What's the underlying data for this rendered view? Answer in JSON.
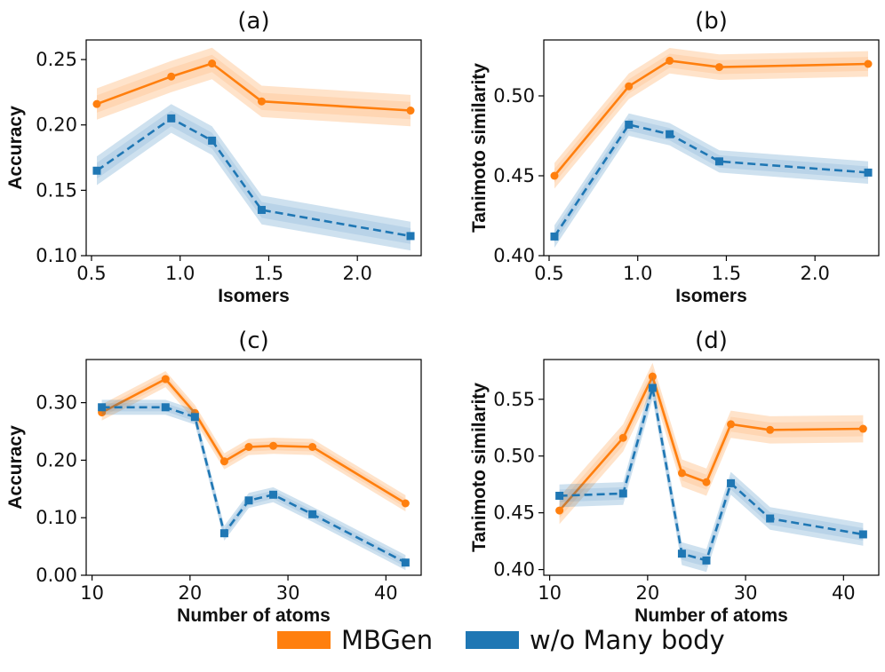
{
  "colors": {
    "mbgen": "#ff7f0e",
    "wo_many_body": "#1f77b4",
    "axis": "#000000"
  },
  "legend": {
    "items": [
      {
        "label": "MBGen",
        "color": "#ff7f0e"
      },
      {
        "label": "w/o Many body",
        "color": "#1f77b4"
      }
    ]
  },
  "chart_data": [
    {
      "type": "line",
      "title": "(a)",
      "xlabel": "Isomers",
      "ylabel": "Accuracy",
      "xlim": [
        0.47,
        2.36
      ],
      "ylim": [
        0.1,
        0.265
      ],
      "xticks": [
        0.5,
        1.0,
        1.5,
        2.0
      ],
      "xtick_labels": [
        "0.5",
        "1.0",
        "1.5",
        "2.0"
      ],
      "yticks": [
        0.1,
        0.15,
        0.2,
        0.25
      ],
      "ytick_labels": [
        "0.10",
        "0.15",
        "0.20",
        "0.25"
      ],
      "x": [
        0.53,
        0.95,
        1.18,
        1.46,
        2.3
      ],
      "series": [
        {
          "name": "MBGen",
          "values": [
            0.216,
            0.237,
            0.247,
            0.218,
            0.211
          ],
          "band": 0.012
        },
        {
          "name": "w/o Many body",
          "values": [
            0.165,
            0.205,
            0.188,
            0.135,
            0.115
          ],
          "band": 0.011
        }
      ]
    },
    {
      "type": "line",
      "title": "(b)",
      "xlabel": "Isomers",
      "ylabel": "Tanimoto similarity",
      "xlim": [
        0.47,
        2.36
      ],
      "ylim": [
        0.4,
        0.535
      ],
      "xticks": [
        0.5,
        1.0,
        1.5,
        2.0
      ],
      "xtick_labels": [
        "0.5",
        "1.0",
        "1.5",
        "2.0"
      ],
      "yticks": [
        0.4,
        0.45,
        0.5
      ],
      "ytick_labels": [
        "0.40",
        "0.45",
        "0.50"
      ],
      "x": [
        0.53,
        0.95,
        1.18,
        1.46,
        2.3
      ],
      "series": [
        {
          "name": "MBGen",
          "values": [
            0.45,
            0.506,
            0.522,
            0.518,
            0.52
          ],
          "band": 0.008
        },
        {
          "name": "w/o Many body",
          "values": [
            0.412,
            0.482,
            0.476,
            0.459,
            0.452
          ],
          "band": 0.007
        }
      ]
    },
    {
      "type": "line",
      "title": "(c)",
      "xlabel": "Number of atoms",
      "ylabel": "Accuracy",
      "xlim": [
        9.4,
        43.6
      ],
      "ylim": [
        0.0,
        0.375
      ],
      "xticks": [
        10,
        20,
        30,
        40
      ],
      "xtick_labels": [
        "10",
        "20",
        "30",
        "40"
      ],
      "yticks": [
        0.0,
        0.1,
        0.2,
        0.3
      ],
      "ytick_labels": [
        "0.00",
        "0.10",
        "0.20",
        "0.30"
      ],
      "x": [
        11,
        17.5,
        20.5,
        23.5,
        26,
        28.5,
        32.5,
        42
      ],
      "series": [
        {
          "name": "MBGen",
          "values": [
            0.283,
            0.341,
            0.282,
            0.198,
            0.223,
            0.225,
            0.223,
            0.125
          ],
          "band": 0.014
        },
        {
          "name": "w/o Many body",
          "values": [
            0.292,
            0.292,
            0.275,
            0.073,
            0.13,
            0.14,
            0.106,
            0.022
          ],
          "band": 0.013
        }
      ]
    },
    {
      "type": "line",
      "title": "(d)",
      "xlabel": "Number of atoms",
      "ylabel": "Tanimoto similarity",
      "xlim": [
        9.4,
        43.6
      ],
      "ylim": [
        0.395,
        0.585
      ],
      "xticks": [
        10,
        20,
        30,
        40
      ],
      "xtick_labels": [
        "10",
        "20",
        "30",
        "40"
      ],
      "yticks": [
        0.4,
        0.45,
        0.5,
        0.55
      ],
      "ytick_labels": [
        "0.40",
        "0.45",
        "0.50",
        "0.55"
      ],
      "x": [
        11,
        17.5,
        20.5,
        23.5,
        26,
        28.5,
        32.5,
        42
      ],
      "series": [
        {
          "name": "MBGen",
          "values": [
            0.452,
            0.516,
            0.57,
            0.485,
            0.477,
            0.528,
            0.523,
            0.524
          ],
          "band": 0.012
        },
        {
          "name": "w/o Many body",
          "values": [
            0.465,
            0.467,
            0.56,
            0.414,
            0.408,
            0.476,
            0.445,
            0.431
          ],
          "band": 0.01
        }
      ]
    }
  ]
}
